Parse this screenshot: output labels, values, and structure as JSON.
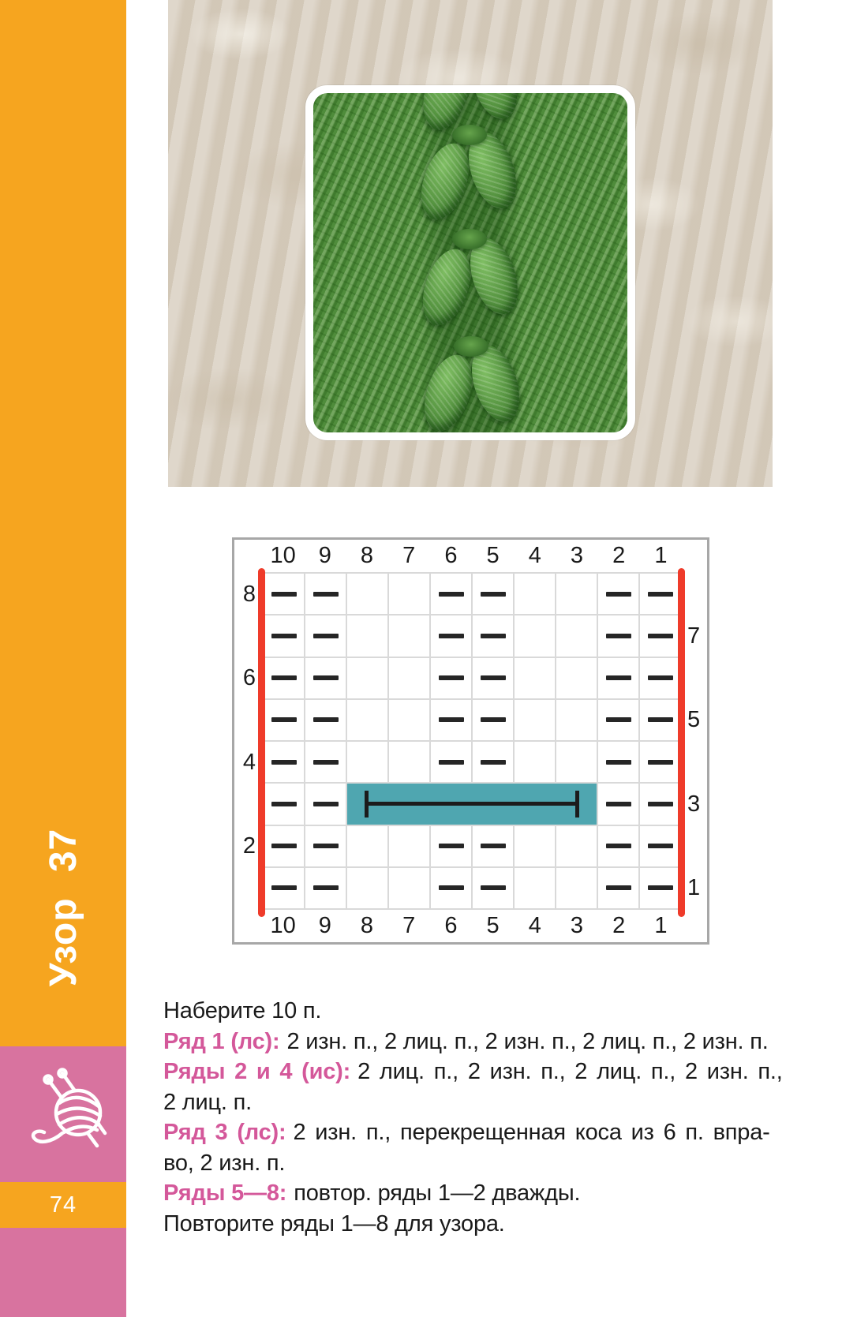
{
  "sidebar": {
    "title": "Узор 37",
    "page_number": "74",
    "icon": "yarn-ball-icon"
  },
  "colors": {
    "sidebar_orange": "#F6A51F",
    "sidebar_pink": "#D8739F",
    "chart_red": "#EF3B2A",
    "cable_teal": "#4FA6B0",
    "label_pink": "#D4589A",
    "swatch_green": "#4F8C3B",
    "background_beige": "#D7CDBE"
  },
  "chart_data": {
    "type": "table",
    "subtype": "knitting-chart",
    "grid_cols": 10,
    "grid_rows": 8,
    "columns_top": [
      "10",
      "9",
      "8",
      "7",
      "6",
      "5",
      "4",
      "3",
      "2",
      "1"
    ],
    "columns_bottom": [
      "10",
      "9",
      "8",
      "7",
      "6",
      "5",
      "4",
      "3",
      "2",
      "1"
    ],
    "row_labels_left": [
      "8",
      "6",
      "4",
      "2"
    ],
    "row_labels_right": [
      "7",
      "5",
      "3",
      "1"
    ],
    "rows": [
      {
        "row": 8,
        "purl_cols": [
          10,
          9,
          6,
          5,
          2,
          1
        ]
      },
      {
        "row": 7,
        "purl_cols": [
          10,
          9,
          6,
          5,
          2,
          1
        ]
      },
      {
        "row": 6,
        "purl_cols": [
          10,
          9,
          6,
          5,
          2,
          1
        ]
      },
      {
        "row": 5,
        "purl_cols": [
          10,
          9,
          6,
          5,
          2,
          1
        ]
      },
      {
        "row": 4,
        "purl_cols": [
          10,
          9,
          6,
          5,
          2,
          1
        ]
      },
      {
        "row": 3,
        "purl_cols": [
          10,
          9,
          2,
          1
        ],
        "cable": {
          "from_col": 8,
          "to_col": 3
        }
      },
      {
        "row": 2,
        "purl_cols": [
          10,
          9,
          6,
          5,
          2,
          1
        ]
      },
      {
        "row": 1,
        "purl_cols": [
          10,
          9,
          6,
          5,
          2,
          1
        ]
      }
    ]
  },
  "instructions": {
    "lines": [
      {
        "label": "",
        "text": "Наберите 10 п."
      },
      {
        "label": "Ряд 1 (лс):",
        "text": "2 изн. п., 2 лиц. п., 2 изн. п., 2 лиц. п., 2 изн. п."
      },
      {
        "label": "Ряды 2 и 4 (ис):",
        "text": "2 лиц. п., 2 изн. п., 2 лиц. п., 2 изн. п.,",
        "spread": true
      },
      {
        "label": "",
        "text": "2 лиц. п."
      },
      {
        "label": "Ряд 3 (лс):",
        "text": "2 изн. п., перекрещенная коса из 6 п. впра-",
        "spread": true
      },
      {
        "label": "",
        "text": "во, 2 изн. п."
      },
      {
        "label": "Ряды 5—8:",
        "text": "повтор. ряды 1—2 дважды."
      },
      {
        "label": "",
        "text": "Повторите ряды 1—8 для узора."
      }
    ]
  }
}
